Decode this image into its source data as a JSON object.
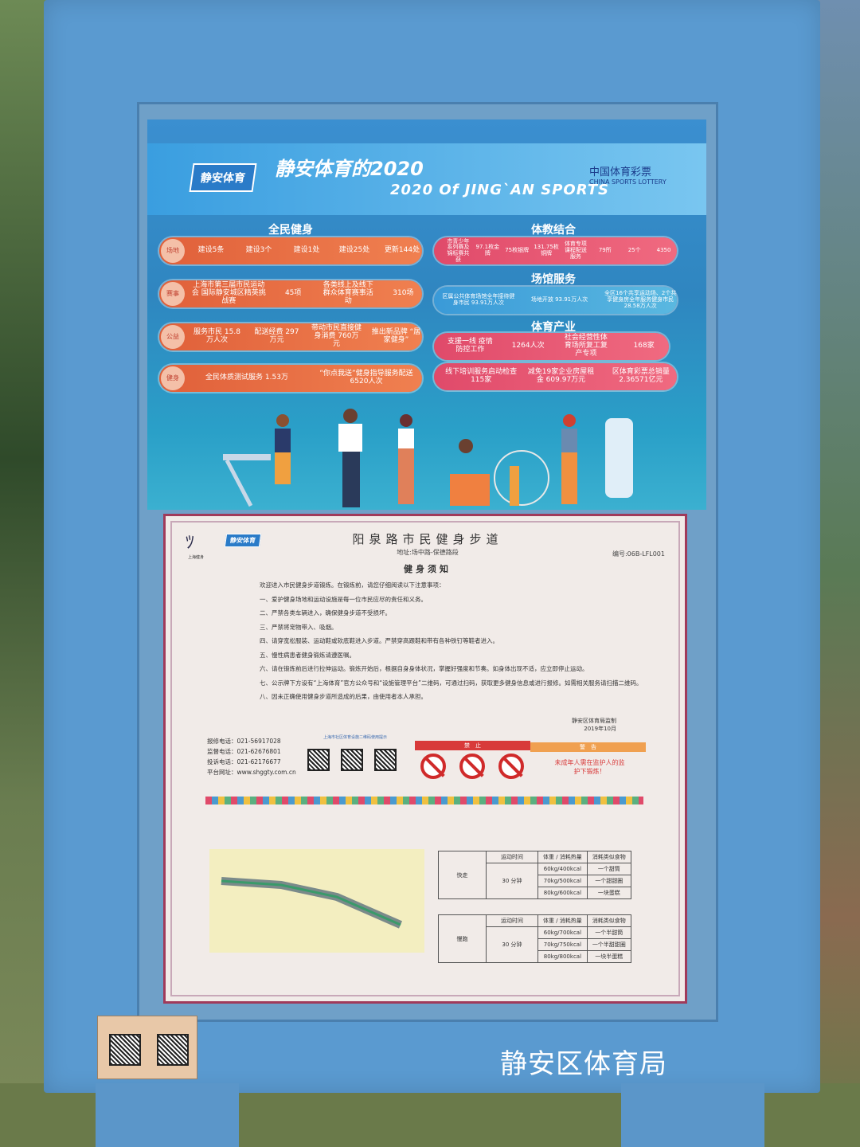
{
  "poster": {
    "logo": "静安体育",
    "title": "静安体育的2020",
    "subtitle": "2020 Of JING`AN SPORTS",
    "lottery_cn": "中国体育彩票",
    "lottery_en": "CHINA SPORTS LOTTERY",
    "sections": {
      "fitness": {
        "heading": "全民健身",
        "rows": [
          {
            "cells": [
              "建设5条",
              "建设3个",
              "建设1处",
              "建设25处",
              "更新144处"
            ]
          },
          {
            "cells": [
              "上海市第三届市民运动会 国际静安城区精英挑战赛",
              "45项",
              "各类线上及线下 群众体育赛事活动",
              "310场"
            ]
          },
          {
            "cells": [
              "服务市民 15.8万人次",
              "配送经费 297万元",
              "带动市民直接健身消费 760万元",
              "推出新品牌 “居家健身”"
            ]
          },
          {
            "cells": [
              "全民体质测试服务 1.53万",
              "“你点我送”健身指导服务配送 6520人次"
            ]
          }
        ]
      },
      "education": {
        "heading": "体教结合",
        "rows": [
          {
            "cells": [
              "市青少年系列赛及锦标赛共获",
              "97.1枚金牌",
              "75枚银牌",
              "131.75枚铜牌",
              "体育专项课程配送服务",
              "79所",
              "25个",
              "4350"
            ]
          }
        ]
      },
      "venues": {
        "heading": "场馆服务",
        "rows": [
          {
            "cells": [
              "区属公共体育场馆全年接待健身市民 93.91万人次",
              "场地开放 93.91万人次",
              "全区16个共享运动场、2个共享健身房全年服务健身市民 28.58万人次"
            ]
          }
        ]
      },
      "industry": {
        "heading": "体育产业",
        "rows": [
          {
            "cells": [
              "支援一线 疫情防控工作",
              "1264人次",
              "社会经营性体育场所复工复产专项",
              "168家"
            ]
          },
          {
            "cells": [
              "线下培训服务启动检查 115家",
              "减免19家企业房屋租金 609.97万元",
              "区体育彩票总销量 2.36571亿元"
            ]
          }
        ]
      }
    }
  },
  "notice": {
    "logo_text": "上海健身",
    "title": "阳泉路市民健身步道",
    "address": "地址:场中路-保德路段",
    "code": "编号:06B-LFL001",
    "heading": "健身须知",
    "intro": "欢迎进入市民健身步道锻炼。在锻炼前，请您仔细阅读以下注意事项：",
    "rules": [
      "一、爱护健身场地和运动设施是每一位市民应尽的责任和义务。",
      "二、严禁各类车辆进入，确保健身步道不受损坏。",
      "三、严禁将宠物带入、吸烟。",
      "四、请穿宽松服装、运动鞋或软底鞋进入步道。严禁穿高跟鞋和带有各种铁钉等鞋者进入。",
      "五、慢性病患者健身锻炼请遵医嘱。",
      "六、请在锻炼前后进行拉伸运动。锻炼开始后，根据自身身体状况，掌握好强度和节奏。如身体出现不适，应立即停止运动。",
      "七、公示牌下方设有“上海体育”官方公众号和“设施管理平台”二维码，可通过扫码，获取更多健身信息或进行报修。如需相关服务请扫描二维码。",
      "八、因未正确使用健身步道所造成的后果，由使用者本人承担。"
    ],
    "issuer": "静安区体育局监制",
    "date": "2019年10月",
    "contacts": [
      "报修电话：021-56917028",
      "监督电话：021-62676801",
      "投诉电话：021-62176677",
      "平台网址：www.shggty.com.cn"
    ],
    "qr_heading": "上海市社区体育设施二维码使用提示",
    "prohibited_label": "禁　止",
    "warning_label": "警　告",
    "warning_text": "未成年人需在监护人的监护下锻炼！",
    "prohibited_icons": [
      "no-high-heels-icon",
      "no-smoking-icon",
      "no-pets-icon"
    ],
    "tables": [
      {
        "activity": "快走",
        "headers": [
          "运动时间",
          "体重 / 消耗热量",
          "消耗类似食物"
        ],
        "duration": "30 分钟",
        "rows": [
          [
            "60kg/400kcal",
            "一个甜筒"
          ],
          [
            "70kg/500kcal",
            "一个甜甜圈"
          ],
          [
            "80kg/600kcal",
            "一块蛋糕"
          ]
        ]
      },
      {
        "activity": "慢跑",
        "headers": [
          "运动时间",
          "体重 / 消耗热量",
          "消耗类似食物"
        ],
        "duration": "30 分钟",
        "rows": [
          [
            "60kg/700kcal",
            "一个半甜筒"
          ],
          [
            "70kg/750kcal",
            "一个半甜甜圈"
          ],
          [
            "80kg/800kcal",
            "一块半蛋糕"
          ]
        ]
      }
    ]
  },
  "footer": {
    "organization": "静安区体育局"
  },
  "colors": {
    "frame_blue": "#5a9ad0",
    "poster_orange": "#e0603a",
    "poster_pink": "#e04a6a",
    "notice_border": "#a03a5a",
    "prohibited_red": "#d02a2a",
    "warning_orange": "#f0a050"
  }
}
